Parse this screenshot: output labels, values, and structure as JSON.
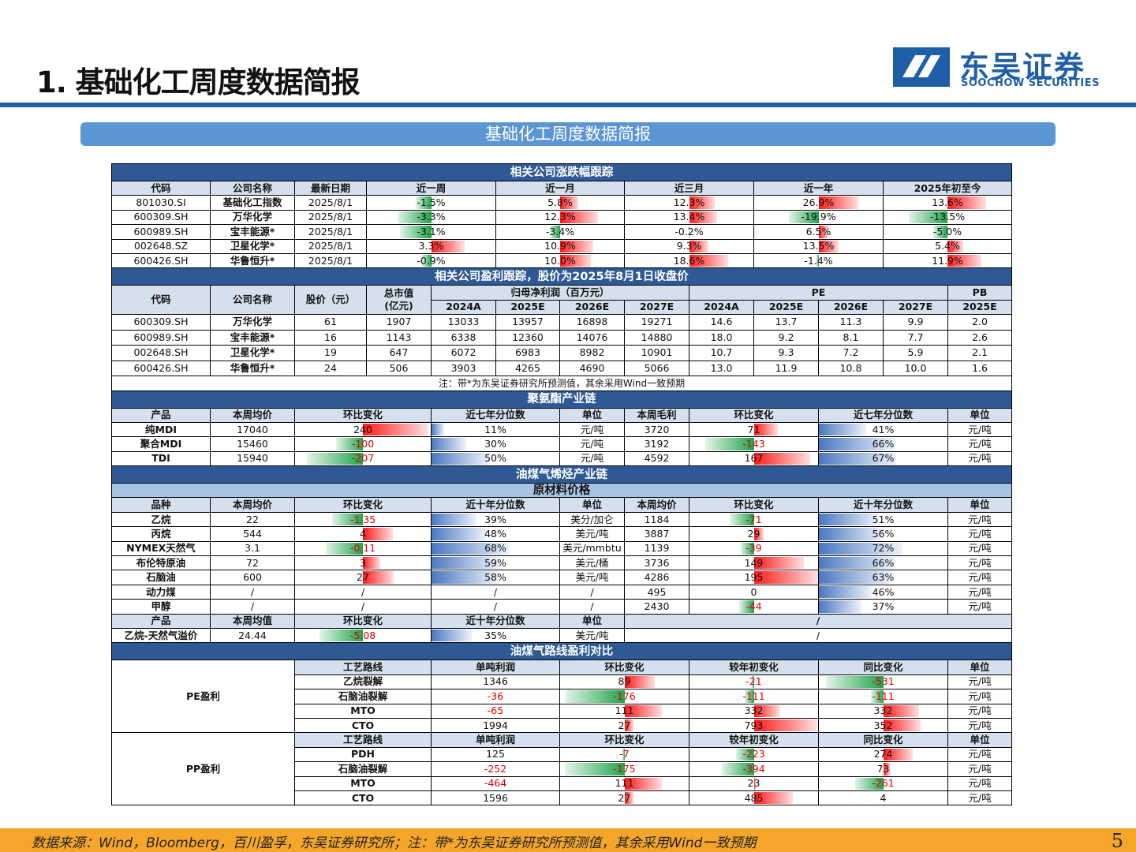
{
  "header": {
    "title": "1. 基础化工周度数据简报",
    "logo_cn": "东吴证券",
    "logo_en": "SOOCHOW SECURITIES"
  },
  "banner": "基础化工周度数据简报",
  "footer": {
    "text": "数据来源：Wind，Bloomberg，百川盈孚，东吴证券研究所；注：带*为东吴证券研究所预测值，其余采用Wind一致预期",
    "page": "5"
  },
  "perf": {
    "title": "相关公司涨跌幅跟踪",
    "headers": [
      "代码",
      "公司名称",
      "最新日期",
      "近一周",
      "近一月",
      "近三月",
      "近一年",
      "2025年初至今"
    ],
    "rows": [
      {
        "cells": [
          "801030.SI",
          "基础化工指数",
          "2025/8/1"
        ],
        "vals": [
          {
            "t": "-1.5%",
            "v": -1.5
          },
          {
            "t": "5.8%",
            "v": 5.8
          },
          {
            "t": "12.3%",
            "v": 12.3
          },
          {
            "t": "26.9%",
            "v": 26.9
          },
          {
            "t": "13.6%",
            "v": 13.6
          }
        ]
      },
      {
        "cells": [
          "600309.SH",
          "万华化学",
          "2025/8/1"
        ],
        "vals": [
          {
            "t": "-3.3%",
            "v": -3.3
          },
          {
            "t": "12.3%",
            "v": 12.3
          },
          {
            "t": "13.4%",
            "v": 13.4
          },
          {
            "t": "-19.9%",
            "v": -19.9
          },
          {
            "t": "-13.5%",
            "v": -13.5
          }
        ]
      },
      {
        "cells": [
          "600989.SH",
          "宝丰能源*",
          "2025/8/1"
        ],
        "vals": [
          {
            "t": "-3.1%",
            "v": -3.1
          },
          {
            "t": "-3.4%",
            "v": -3.4
          },
          {
            "t": "-0.2%",
            "v": -0.2
          },
          {
            "t": "6.5%",
            "v": 6.5
          },
          {
            "t": "-5.0%",
            "v": -5.0
          }
        ]
      },
      {
        "cells": [
          "002648.SZ",
          "卫星化学*",
          "2025/8/1"
        ],
        "vals": [
          {
            "t": "3.3%",
            "v": 3.3
          },
          {
            "t": "10.9%",
            "v": 10.9
          },
          {
            "t": "9.3%",
            "v": 9.3
          },
          {
            "t": "13.5%",
            "v": 13.5
          },
          {
            "t": "5.4%",
            "v": 5.4
          }
        ]
      },
      {
        "cells": [
          "600426.SH",
          "华鲁恒升*",
          "2025/8/1"
        ],
        "vals": [
          {
            "t": "-0.9%",
            "v": -0.9
          },
          {
            "t": "10.0%",
            "v": 10.0
          },
          {
            "t": "18.6%",
            "v": 18.6
          },
          {
            "t": "-1.4%",
            "v": -1.4
          },
          {
            "t": "11.9%",
            "v": 11.9
          }
        ]
      }
    ]
  },
  "earn": {
    "title": "相关公司盈利跟踪，股价为2025年8月1日收盘价",
    "h1": [
      "代码",
      "公司名称",
      "股价（元）",
      "总市值",
      "归母净利润（百万元）",
      "PE",
      "PB"
    ],
    "h1b": "(亿元)",
    "h2": [
      "2024A",
      "2025E",
      "2026E",
      "2027E",
      "2024A",
      "2025E",
      "2026E",
      "2027E",
      "2025E"
    ],
    "rows": [
      [
        "600309.SH",
        "万华化学",
        "61",
        "1907",
        "13033",
        "13957",
        "16898",
        "19271",
        "14.6",
        "13.7",
        "11.3",
        "9.9",
        "2.0"
      ],
      [
        "600989.SH",
        "宝丰能源*",
        "16",
        "1143",
        "6338",
        "12360",
        "14076",
        "14880",
        "18.0",
        "9.2",
        "8.1",
        "7.7",
        "2.6"
      ],
      [
        "002648.SH",
        "卫星化学*",
        "19",
        "647",
        "6072",
        "6983",
        "8982",
        "10901",
        "10.7",
        "9.3",
        "7.2",
        "5.9",
        "2.1"
      ],
      [
        "600426.SH",
        "华鲁恒升*",
        "24",
        "506",
        "3903",
        "4265",
        "4690",
        "5066",
        "13.0",
        "11.9",
        "10.8",
        "10.0",
        "1.6"
      ]
    ],
    "note": "注：带*为东吴证券研究所预测值，其余采用Wind一致预期"
  },
  "pu": {
    "title": "聚氨酯产业链",
    "headers": [
      "产品",
      "本周均价",
      "环比变化",
      "近七年分位数",
      "单位",
      "本周毛利",
      "环比变化",
      "近七年分位数",
      "单位"
    ],
    "rows": [
      {
        "name": "纯MDI",
        "price": "17040",
        "chg": {
          "t": "240",
          "v": 240
        },
        "pct": {
          "t": "11%",
          "v": 11
        },
        "unit": "元/吨",
        "gm": "3720",
        "gchg": {
          "t": "71",
          "v": 71
        },
        "gpct": {
          "t": "41%",
          "v": 41
        },
        "gunit": "元/吨"
      },
      {
        "name": "聚合MDI",
        "price": "15460",
        "chg": {
          "t": "-100",
          "v": -100
        },
        "pct": {
          "t": "30%",
          "v": 30
        },
        "unit": "元/吨",
        "gm": "3192",
        "gchg": {
          "t": "-143",
          "v": -143
        },
        "gpct": {
          "t": "66%",
          "v": 66
        },
        "gunit": "元/吨"
      },
      {
        "name": "TDI",
        "price": "15940",
        "chg": {
          "t": "-207",
          "v": -207
        },
        "pct": {
          "t": "50%",
          "v": 50
        },
        "unit": "元/吨",
        "gm": "4592",
        "gchg": {
          "t": "167",
          "v": 167
        },
        "gpct": {
          "t": "67%",
          "v": 67
        },
        "gunit": "元/吨"
      }
    ]
  },
  "oil": {
    "title": "油煤气烯烃产业链",
    "sub": "原材料价格",
    "headers": [
      "品种",
      "本周均价",
      "环比变化",
      "近十年分位数",
      "单位",
      "本周均价",
      "环比变化",
      "近十年分位数",
      "单位"
    ],
    "rows": [
      {
        "name": "乙烷",
        "price": "22",
        "chg": {
          "t": "-1.35",
          "v": -1.35
        },
        "pct": {
          "t": "39%",
          "v": 39
        },
        "unit": "美分/加仑",
        "p2": "1184",
        "chg2": {
          "t": "-71",
          "v": -71
        },
        "pct2": {
          "t": "51%",
          "v": 51
        },
        "unit2": "元/吨"
      },
      {
        "name": "丙烷",
        "price": "544",
        "chg": {
          "t": "4",
          "v": 4
        },
        "pct": {
          "t": "48%",
          "v": 48
        },
        "unit": "美元/吨",
        "p2": "3887",
        "chg2": {
          "t": "29",
          "v": 29
        },
        "pct2": {
          "t": "56%",
          "v": 56
        },
        "unit2": "元/吨"
      },
      {
        "name": "NYMEX天然气",
        "price": "3.1",
        "chg": {
          "t": "-0.11",
          "v": -0.11
        },
        "pct": {
          "t": "68%",
          "v": 68
        },
        "unit": "美元/mmbtu",
        "p2": "1139",
        "chg2": {
          "t": "-39",
          "v": -39
        },
        "pct2": {
          "t": "72%",
          "v": 72
        },
        "unit2": "元/吨"
      },
      {
        "name": "布伦特原油",
        "price": "72",
        "chg": {
          "t": "3",
          "v": 3
        },
        "pct": {
          "t": "59%",
          "v": 59
        },
        "unit": "美元/桶",
        "p2": "3736",
        "chg2": {
          "t": "149",
          "v": 149
        },
        "pct2": {
          "t": "66%",
          "v": 66
        },
        "unit2": "元/吨"
      },
      {
        "name": "石脑油",
        "price": "600",
        "chg": {
          "t": "27",
          "v": 27
        },
        "pct": {
          "t": "58%",
          "v": 58
        },
        "unit": "美元/吨",
        "p2": "4286",
        "chg2": {
          "t": "195",
          "v": 195
        },
        "pct2": {
          "t": "63%",
          "v": 63
        },
        "unit2": "元/吨"
      },
      {
        "name": "动力煤",
        "price": "/",
        "chg": {
          "t": "/",
          "v": 0
        },
        "pct": {
          "t": "/",
          "v": 0
        },
        "unit": "/",
        "p2": "495",
        "chg2": {
          "t": "0",
          "v": 0
        },
        "pct2": {
          "t": "46%",
          "v": 46
        },
        "unit2": "元/吨"
      },
      {
        "name": "甲醇",
        "price": "/",
        "chg": {
          "t": "/",
          "v": 0
        },
        "pct": {
          "t": "/",
          "v": 0
        },
        "unit": "/",
        "p2": "2430",
        "chg2": {
          "t": "-44",
          "v": -44
        },
        "pct2": {
          "t": "37%",
          "v": 37
        },
        "unit2": "元/吨"
      }
    ],
    "spread_headers": [
      "产品",
      "本周均值",
      "环比变化",
      "近十年分位数",
      "单位",
      "/"
    ],
    "spread": {
      "name": "乙烷-天然气溢价",
      "price": "24.44",
      "chg": {
        "t": "-5.08",
        "v": -5.08
      },
      "pct": {
        "t": "35%",
        "v": 35
      },
      "unit": "美元/吨",
      "rest": "/"
    }
  },
  "profit": {
    "title": "油煤气路线盈利对比",
    "headers": [
      "工艺路线",
      "单吨利润",
      "环比变化",
      "较年初变化",
      "同比变化",
      "单位"
    ],
    "groups": [
      {
        "label": "PE盈利",
        "rows": [
          {
            "route": "乙烷裂解",
            "p": {
              "t": "1346",
              "v": 1346
            },
            "wow": {
              "t": "89",
              "v": 89
            },
            "ytd": {
              "t": "-21",
              "v": -21
            },
            "yoy": {
              "t": "-531",
              "v": -531
            },
            "unit": "元/吨"
          },
          {
            "route": "石脑油裂解",
            "p": {
              "t": "-36",
              "v": -36
            },
            "wow": {
              "t": "-176",
              "v": -176
            },
            "ytd": {
              "t": "-111",
              "v": -111
            },
            "yoy": {
              "t": "-111",
              "v": -111
            },
            "unit": "元/吨"
          },
          {
            "route": "MTO",
            "p": {
              "t": "-65",
              "v": -65
            },
            "wow": {
              "t": "111",
              "v": 111
            },
            "ytd": {
              "t": "332",
              "v": 332
            },
            "yoy": {
              "t": "332",
              "v": 332
            },
            "unit": "元/吨"
          },
          {
            "route": "CTO",
            "p": {
              "t": "1994",
              "v": 1994
            },
            "wow": {
              "t": "27",
              "v": 27
            },
            "ytd": {
              "t": "793",
              "v": 793
            },
            "yoy": {
              "t": "352",
              "v": 352
            },
            "unit": "元/吨"
          }
        ]
      },
      {
        "label": "PP盈利",
        "rows": [
          {
            "route": "PDH",
            "p": {
              "t": "125",
              "v": 125
            },
            "wow": {
              "t": "-7",
              "v": -7
            },
            "ytd": {
              "t": "-223",
              "v": -223
            },
            "yoy": {
              "t": "274",
              "v": 274
            },
            "unit": "元/吨"
          },
          {
            "route": "石脑油裂解",
            "p": {
              "t": "-252",
              "v": -252
            },
            "wow": {
              "t": "-175",
              "v": -175
            },
            "ytd": {
              "t": "-394",
              "v": -394
            },
            "yoy": {
              "t": "73",
              "v": 73
            },
            "unit": "元/吨"
          },
          {
            "route": "MTO",
            "p": {
              "t": "-464",
              "v": -464
            },
            "wow": {
              "t": "111",
              "v": 111
            },
            "ytd": {
              "t": "23",
              "v": 23
            },
            "yoy": {
              "t": "-261",
              "v": -261
            },
            "unit": "元/吨"
          },
          {
            "route": "CTO",
            "p": {
              "t": "1596",
              "v": 1596
            },
            "wow": {
              "t": "27",
              "v": 27
            },
            "ytd": {
              "t": "485",
              "v": 485
            },
            "yoy": {
              "t": "4",
              "v": 4
            },
            "unit": "元/吨"
          }
        ]
      }
    ]
  },
  "colors": {
    "section": "#2e5994",
    "header": "#d4e0ee",
    "positive": "#ff1a1a",
    "negative": "#1fa24a",
    "percentile": "#4a78c0",
    "negative_text": "#e00000",
    "footer": "#f5a62a",
    "brand": "#1f5fa8"
  }
}
